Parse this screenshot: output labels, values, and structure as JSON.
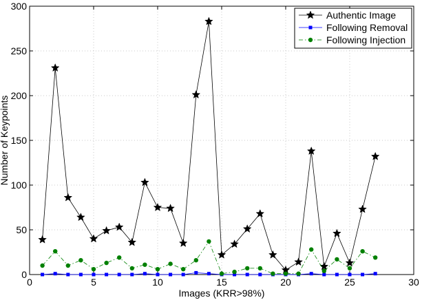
{
  "chart_data": {
    "type": "line",
    "xlabel": "Images (KRR>98%)",
    "ylabel": "Number of Keypoints",
    "xlim": [
      0,
      30
    ],
    "ylim": [
      0,
      300
    ],
    "xticks": [
      0,
      5,
      10,
      15,
      20,
      25,
      30
    ],
    "yticks": [
      0,
      50,
      100,
      150,
      200,
      250,
      300
    ],
    "grid": true,
    "legend_position": "top-right",
    "x": [
      1,
      2,
      3,
      4,
      5,
      6,
      7,
      8,
      9,
      10,
      11,
      12,
      13,
      14,
      15,
      16,
      17,
      18,
      19,
      20,
      21,
      22,
      23,
      24,
      25,
      26,
      27
    ],
    "series": [
      {
        "name": "Authentic Image",
        "color": "#000000",
        "marker": "star",
        "line_style": "solid",
        "values": [
          39,
          231,
          86,
          64,
          40,
          49,
          53,
          36,
          103,
          75,
          74,
          35,
          201,
          283,
          22,
          34,
          51,
          68,
          22,
          5,
          14,
          138,
          9,
          46,
          13,
          73,
          132
        ]
      },
      {
        "name": "Following Removal",
        "color": "#0000ff",
        "marker": "square",
        "line_style": "solid",
        "values": [
          0,
          1,
          0,
          0,
          0,
          0,
          0,
          0,
          1,
          0,
          0,
          0,
          2,
          1,
          0,
          0,
          0,
          0,
          0,
          0,
          0,
          1,
          0,
          0,
          0,
          0,
          1
        ]
      },
      {
        "name": "Following Injection",
        "color": "#008000",
        "marker": "circle",
        "line_style": "dashdot",
        "values": [
          10,
          26,
          10,
          16,
          6,
          13,
          19,
          7,
          11,
          6,
          12,
          6,
          16,
          37,
          1,
          3,
          7,
          7,
          1,
          1,
          1,
          28,
          4,
          17,
          7,
          26,
          19
        ]
      }
    ]
  }
}
